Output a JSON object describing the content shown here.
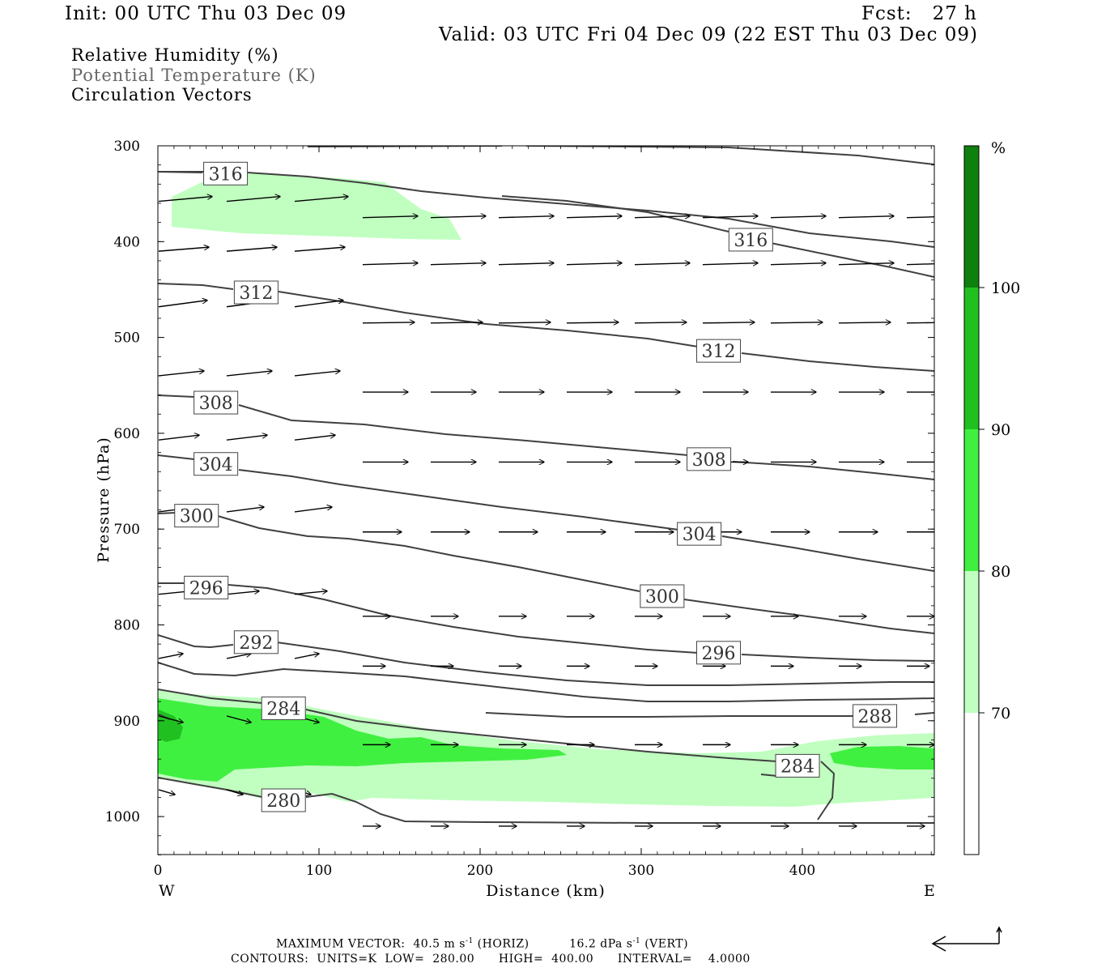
{
  "header": {
    "init": "Init: 00 UTC Thu 03 Dec 09",
    "fcst": "Fcst:   27 h",
    "valid": "Valid: 03 UTC Fri 04 Dec 09 (22 EST Thu 03 Dec 09)"
  },
  "legend_lines": [
    "Relative Humidity (%)",
    "Potential Temperature (K)",
    "Circulation Vectors"
  ],
  "footer": {
    "max_vector_label": "MAXIMUM VECTOR:",
    "horiz_value": "40.5 m s",
    "horiz_suffix": "(HORIZ)",
    "vert_value": "16.2 dPa s",
    "vert_suffix": "(VERT)",
    "exponent": "-1",
    "contours": "CONTOURS:  UNITS=K  LOW=  280.00      HIGH=  400.00      INTERVAL=    4.0000"
  },
  "colors": {
    "rh_70": "#c0ffc0",
    "rh_80": "#40f040",
    "rh_90": "#20c020",
    "rh_100": "#0e800e",
    "contour": "#404040"
  },
  "chart_data": {
    "type": "cross-section",
    "xlabel": "Distance (km)",
    "ylabel": "Pressure (hPa)",
    "x_ticks": [
      0,
      100,
      200,
      300,
      400
    ],
    "y_ticks": [
      300,
      400,
      500,
      600,
      700,
      800,
      900,
      1000
    ],
    "xlim": [
      0,
      482
    ],
    "ylim": [
      1040,
      300
    ],
    "end_labels": {
      "west": "W",
      "east": "E"
    },
    "colorbar": {
      "unit": "%",
      "levels": [
        70,
        80,
        90,
        100
      ]
    },
    "contour_units": "K",
    "contour_low": 280.0,
    "contour_high": 400.0,
    "contour_interval": 4.0,
    "theta_labels": [
      {
        "value": "316",
        "x": 42,
        "p": 329
      },
      {
        "value": "316",
        "x": 368,
        "p": 398
      },
      {
        "value": "312",
        "x": 61,
        "p": 453
      },
      {
        "value": "312",
        "x": 348,
        "p": 514
      },
      {
        "value": "308",
        "x": 36,
        "p": 568
      },
      {
        "value": "308",
        "x": 342,
        "p": 627
      },
      {
        "value": "304",
        "x": 36,
        "p": 632
      },
      {
        "value": "304",
        "x": 336,
        "p": 705
      },
      {
        "value": "300",
        "x": 24,
        "p": 686
      },
      {
        "value": "300",
        "x": 313,
        "p": 770
      },
      {
        "value": "296",
        "x": 30,
        "p": 761
      },
      {
        "value": "296",
        "x": 348,
        "p": 829
      },
      {
        "value": "292",
        "x": 61,
        "p": 818
      },
      {
        "value": "288",
        "x": 445,
        "p": 895
      },
      {
        "value": "284",
        "x": 78,
        "p": 887
      },
      {
        "value": "284",
        "x": 397,
        "p": 947
      },
      {
        "value": "280",
        "x": 78,
        "p": 983
      }
    ]
  }
}
